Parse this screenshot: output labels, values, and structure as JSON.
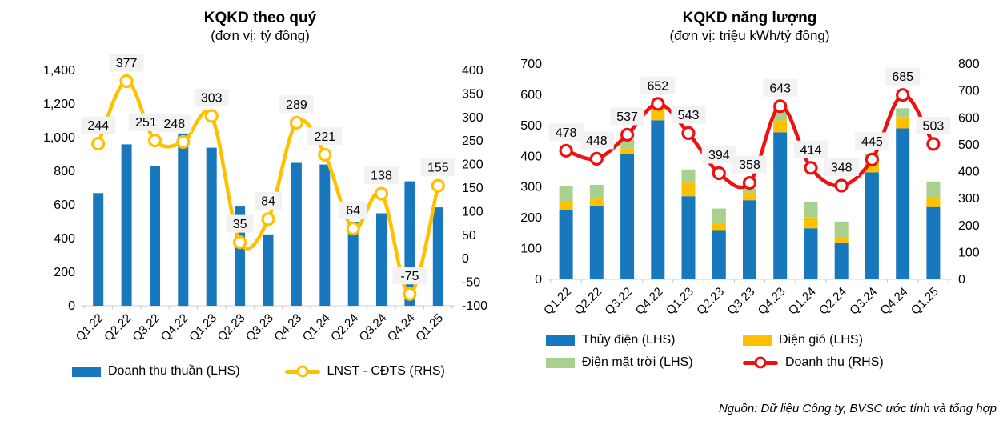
{
  "source_note": "Nguồn: Dữ liệu Công ty, BVSC ước tính và tổng hợp",
  "colors": {
    "bar_blue": "#1878BE",
    "wind_yellow": "#FFC000",
    "solar_green": "#A9D18E",
    "line_yellow": "#FFC000",
    "line_red": "#EE1111",
    "label_chip_bg": "#F2F2F2",
    "axis_line": "#D9D9D9",
    "tick_mark": "#C6C6C6",
    "text": "#000000"
  },
  "chart_data": [
    {
      "type": "bar",
      "title": "KQKD theo quý",
      "subtitle": "(đơn vị: tỷ đồng)",
      "categories": [
        "Q1.22",
        "Q2.22",
        "Q3.22",
        "Q4.22",
        "Q1.23",
        "Q2.23",
        "Q3.23",
        "Q4.23",
        "Q1.24",
        "Q2.24",
        "Q3.24",
        "Q4.24",
        "Q1.25"
      ],
      "series": [
        {
          "name": "Doanh thu thuần (LHS)",
          "type": "bar",
          "axis": "left",
          "color": "#1878BE",
          "values": [
            670,
            960,
            830,
            1025,
            940,
            590,
            425,
            850,
            840,
            500,
            550,
            740,
            585
          ]
        },
        {
          "name": "LNST - CĐTS (RHS)",
          "type": "line",
          "axis": "right",
          "color": "#FFC000",
          "data_labels": true,
          "values": [
            244,
            377,
            251,
            248,
            303,
            35,
            84,
            289,
            221,
            64,
            138,
            -75,
            155
          ]
        }
      ],
      "left_axis": {
        "min": 0,
        "max": 1400,
        "step": 200,
        "tick_labels": [
          "0",
          "200",
          "400",
          "600",
          "800",
          "1,000",
          "1,200",
          "1,400"
        ]
      },
      "right_axis": {
        "min": -100,
        "max": 400,
        "step": 50,
        "tick_labels": [
          "-100",
          "-50",
          "0",
          "50",
          "100",
          "150",
          "200",
          "250",
          "300",
          "350",
          "400"
        ]
      },
      "grid": false,
      "legend_position": "bottom",
      "label_dx": {
        "2": -11,
        "3": -11
      }
    },
    {
      "type": "stacked-bar",
      "title": "KQKD năng lượng",
      "subtitle": "(đơn vị: triệu kWh/tỷ đồng)",
      "categories": [
        "Q1.22",
        "Q2.22",
        "Q3.22",
        "Q4.22",
        "Q1.23",
        "Q2.23",
        "Q3.23",
        "Q4.23",
        "Q1.24",
        "Q2.24",
        "Q3.24",
        "Q4.24",
        "Q1.25"
      ],
      "series": [
        {
          "name": "Thủy điện (LHS)",
          "type": "bar",
          "axis": "left",
          "color": "#1878BE",
          "values": [
            225,
            240,
            406,
            517,
            270,
            160,
            257,
            478,
            166,
            120,
            348,
            491,
            235
          ]
        },
        {
          "name": "Điện gió (LHS)",
          "type": "bar",
          "axis": "left",
          "color": "#FFC000",
          "values": [
            27,
            22,
            20,
            42,
            44,
            21,
            25,
            39,
            35,
            18,
            31,
            35,
            32
          ]
        },
        {
          "name": "Điện mặt trời (LHS)",
          "type": "bar",
          "axis": "left",
          "color": "#A9D18E",
          "values": [
            50,
            45,
            30,
            5,
            43,
            49,
            14,
            41,
            49,
            50,
            30,
            30,
            51
          ]
        },
        {
          "name": "Doanh thu (RHS)",
          "type": "line",
          "axis": "right",
          "color": "#EE1111",
          "data_labels": true,
          "values": [
            478,
            448,
            537,
            652,
            543,
            394,
            358,
            643,
            414,
            348,
            445,
            685,
            503
          ]
        }
      ],
      "left_axis": {
        "min": 0,
        "max": 700,
        "step": 100,
        "tick_labels": [
          "0",
          "100",
          "200",
          "300",
          "400",
          "500",
          "600",
          "700"
        ]
      },
      "right_axis": {
        "min": 0,
        "max": 800,
        "step": 100,
        "tick_labels": [
          "0",
          "100",
          "200",
          "300",
          "400",
          "500",
          "600",
          "700",
          "800"
        ]
      },
      "grid": false,
      "legend_position": "bottom",
      "label_dx": {}
    }
  ]
}
